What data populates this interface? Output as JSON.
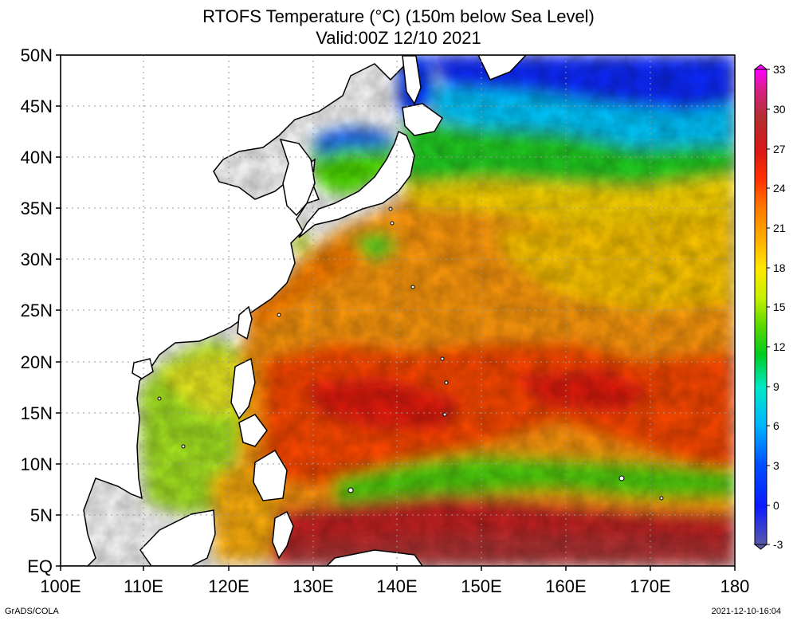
{
  "title": {
    "line1": "RTOFS Temperature (°C) (150m below Sea Level)",
    "line2": "Valid:00Z 12/10 2021"
  },
  "map": {
    "lat_labels": [
      "EQ",
      "5N",
      "10N",
      "15N",
      "20N",
      "25N",
      "30N",
      "35N",
      "40N",
      "45N",
      "50N"
    ],
    "lon_labels": [
      "100E",
      "110E",
      "120E",
      "130E",
      "140E",
      "150E",
      "160E",
      "170E",
      "180"
    ],
    "lat_range": [
      0,
      50
    ],
    "lon_range": [
      100,
      180
    ],
    "grid": "dotted"
  },
  "colorbar": {
    "ticks": [
      "-3",
      "0",
      "3",
      "6",
      "9",
      "12",
      "15",
      "18",
      "21",
      "24",
      "27",
      "30",
      "33"
    ],
    "colors": [
      "#5a5aa8",
      "#0a1aff",
      "#0050ff",
      "#00b4ff",
      "#00e8c8",
      "#00cc20",
      "#5ad800",
      "#c8f000",
      "#ffe800",
      "#ffb000",
      "#ff7800",
      "#ff3000",
      "#d81818",
      "#b43030",
      "#d8208a",
      "#ff00ff"
    ]
  },
  "footer": {
    "credit": "GrADS/COLA",
    "timestamp": "2021-12-10-16:04"
  }
}
